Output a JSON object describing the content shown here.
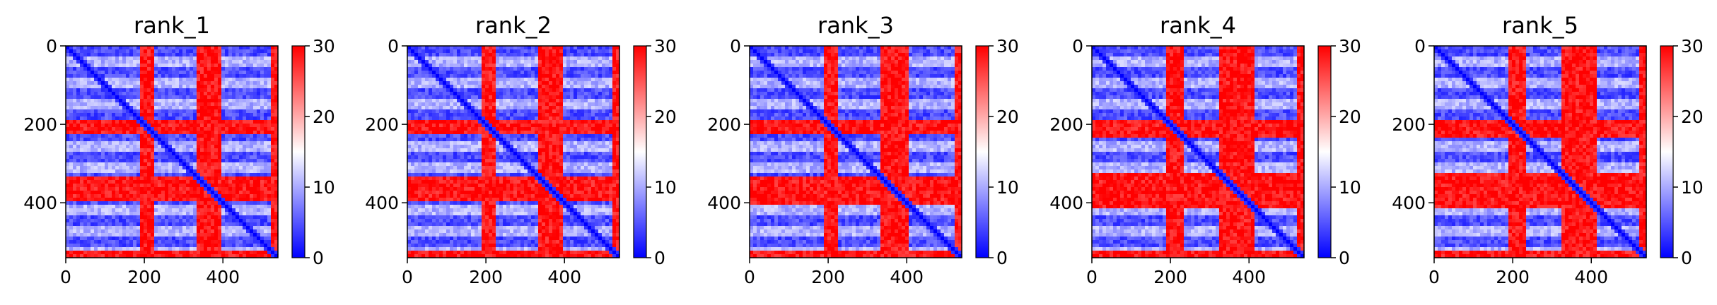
{
  "chart_data": [
    {
      "type": "heatmap",
      "title": "rank_1",
      "matrix_size": 540,
      "x_ticks": [
        "0",
        "200",
        "400"
      ],
      "y_ticks": [
        "0",
        "200",
        "400"
      ],
      "x_tick_values": [
        0,
        200,
        400
      ],
      "y_tick_values": [
        0,
        200,
        400
      ],
      "xlim": [
        0,
        540
      ],
      "ylim": [
        540,
        0
      ],
      "colorbar": {
        "ticks": [
          "0",
          "10",
          "20",
          "30"
        ],
        "tick_values": [
          0,
          10,
          20,
          30
        ],
        "range": [
          0,
          30
        ],
        "colormap": "bwr"
      },
      "high_bands": [
        [
          188,
          222
        ],
        [
          330,
          400
        ],
        [
          520,
          540
        ]
      ],
      "column_band": [
        340,
        400
      ]
    },
    {
      "type": "heatmap",
      "title": "rank_2",
      "matrix_size": 540,
      "x_ticks": [
        "0",
        "200",
        "400"
      ],
      "y_ticks": [
        "0",
        "200",
        "400"
      ],
      "x_tick_values": [
        0,
        200,
        400
      ],
      "y_tick_values": [
        0,
        200,
        400
      ],
      "xlim": [
        0,
        540
      ],
      "ylim": [
        540,
        0
      ],
      "colorbar": {
        "ticks": [
          "0",
          "10",
          "20",
          "30"
        ],
        "tick_values": [
          0,
          10,
          20,
          30
        ],
        "range": [
          0,
          30
        ],
        "colormap": "bwr"
      },
      "high_bands": [
        [
          188,
          222
        ],
        [
          330,
          400
        ],
        [
          520,
          540
        ]
      ],
      "column_band": [
        335,
        390
      ]
    },
    {
      "type": "heatmap",
      "title": "rank_3",
      "matrix_size": 540,
      "x_ticks": [
        "0",
        "200",
        "400"
      ],
      "y_ticks": [
        "0",
        "200",
        "400"
      ],
      "x_tick_values": [
        0,
        200,
        400
      ],
      "y_tick_values": [
        0,
        200,
        400
      ],
      "xlim": [
        0,
        540
      ],
      "ylim": [
        540,
        0
      ],
      "colorbar": {
        "ticks": [
          "0",
          "10",
          "20",
          "30"
        ],
        "tick_values": [
          0,
          10,
          20,
          30
        ],
        "range": [
          0,
          30
        ],
        "colormap": "bwr"
      },
      "high_bands": [
        [
          188,
          222
        ],
        [
          330,
          400
        ],
        [
          520,
          540
        ]
      ],
      "column_band": [
        330,
        405
      ]
    },
    {
      "type": "heatmap",
      "title": "rank_4",
      "matrix_size": 540,
      "x_ticks": [
        "0",
        "200",
        "400"
      ],
      "y_ticks": [
        "0",
        "200",
        "400"
      ],
      "x_tick_values": [
        0,
        200,
        400
      ],
      "y_tick_values": [
        0,
        200,
        400
      ],
      "xlim": [
        0,
        540
      ],
      "ylim": [
        540,
        0
      ],
      "colorbar": {
        "ticks": [
          "0",
          "10",
          "20",
          "30"
        ],
        "tick_values": [
          0,
          10,
          20,
          30
        ],
        "range": [
          0,
          30
        ],
        "colormap": "bwr"
      },
      "high_bands": [
        [
          188,
          230
        ],
        [
          320,
          410
        ],
        [
          520,
          540
        ]
      ],
      "column_band": [
        320,
        410
      ]
    },
    {
      "type": "heatmap",
      "title": "rank_5",
      "matrix_size": 540,
      "x_ticks": [
        "0",
        "200",
        "400"
      ],
      "y_ticks": [
        "0",
        "200",
        "400"
      ],
      "x_tick_values": [
        0,
        200,
        400
      ],
      "y_tick_values": [
        0,
        200,
        400
      ],
      "xlim": [
        0,
        540
      ],
      "ylim": [
        540,
        0
      ],
      "colorbar": {
        "ticks": [
          "0",
          "10",
          "20",
          "30"
        ],
        "tick_values": [
          0,
          10,
          20,
          30
        ],
        "range": [
          0,
          30
        ],
        "colormap": "bwr"
      },
      "high_bands": [
        [
          188,
          230
        ],
        [
          320,
          410
        ],
        [
          520,
          540
        ]
      ],
      "column_band": [
        335,
        395
      ]
    }
  ]
}
